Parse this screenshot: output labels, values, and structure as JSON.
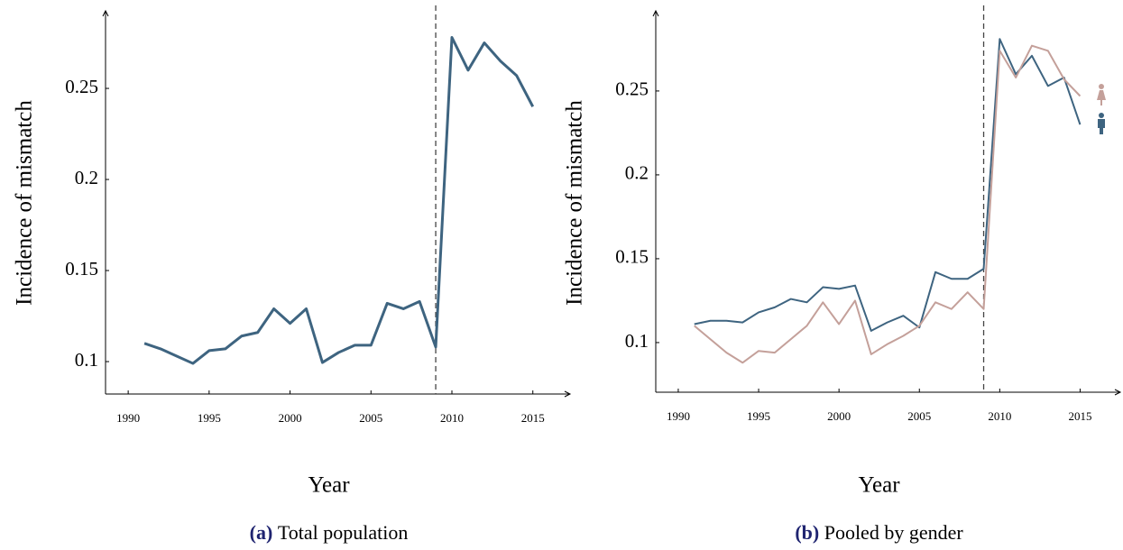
{
  "chart_data": [
    {
      "type": "line",
      "xlabel": "Year",
      "ylabel": "Incidence of mismatch",
      "caption": {
        "label": "(a)",
        "text": "Total population"
      },
      "x": [
        1991,
        1992,
        1993,
        1994,
        1995,
        1996,
        1997,
        1998,
        1999,
        2000,
        2001,
        2002,
        2003,
        2004,
        2005,
        2006,
        2007,
        2008,
        2009,
        2010,
        2011,
        2012,
        2013,
        2014,
        2015
      ],
      "series": [
        {
          "color": "#3e6480",
          "values": [
            0.11,
            0.107,
            0.103,
            0.099,
            0.106,
            0.107,
            0.114,
            0.116,
            0.129,
            0.121,
            0.129,
            0.0995,
            0.105,
            0.109,
            0.109,
            0.132,
            0.129,
            0.133,
            0.108,
            0.278,
            0.26,
            0.275,
            0.265,
            0.257,
            0.24
          ]
        }
      ],
      "xlim": [
        1988.6,
        2017.3
      ],
      "ylim": [
        0.0822,
        0.2926
      ],
      "xticks": [
        1990,
        1995,
        2000,
        2005,
        2010,
        2015
      ],
      "yticks": [
        0.1,
        0.15,
        0.2,
        0.25
      ],
      "vline": 2009
    },
    {
      "type": "line",
      "xlabel": "Year",
      "ylabel": "Incidence of mismatch",
      "caption": {
        "label": "(b)",
        "text": "Pooled by gender"
      },
      "x": [
        1991,
        1992,
        1993,
        1994,
        1995,
        1996,
        1997,
        1998,
        1999,
        2000,
        2001,
        2002,
        2003,
        2004,
        2005,
        2006,
        2007,
        2008,
        2009,
        2010,
        2011,
        2012,
        2013,
        2014,
        2015
      ],
      "series": [
        {
          "color": "#3e6480",
          "values": [
            0.111,
            0.113,
            0.113,
            0.112,
            0.118,
            0.121,
            0.126,
            0.124,
            0.133,
            0.132,
            0.134,
            0.107,
            0.112,
            0.116,
            0.109,
            0.142,
            0.138,
            0.138,
            0.144,
            0.281,
            0.26,
            0.271,
            0.253,
            0.258,
            0.23
          ]
        },
        {
          "color": "#c4a09a",
          "values": [
            0.11,
            0.102,
            0.094,
            0.088,
            0.095,
            0.094,
            0.102,
            0.11,
            0.124,
            0.111,
            0.125,
            0.093,
            0.099,
            0.104,
            0.11,
            0.124,
            0.12,
            0.13,
            0.12,
            0.274,
            0.258,
            0.277,
            0.274,
            0.257,
            0.247
          ]
        }
      ],
      "xlim": [
        1988.6,
        2017.5
      ],
      "ylim": [
        0.0704,
        0.2978
      ],
      "xticks": [
        1990,
        1995,
        2000,
        2005,
        2010,
        2015
      ],
      "yticks": [
        0.1,
        0.15,
        0.2,
        0.25
      ],
      "vline": 2009
    }
  ]
}
